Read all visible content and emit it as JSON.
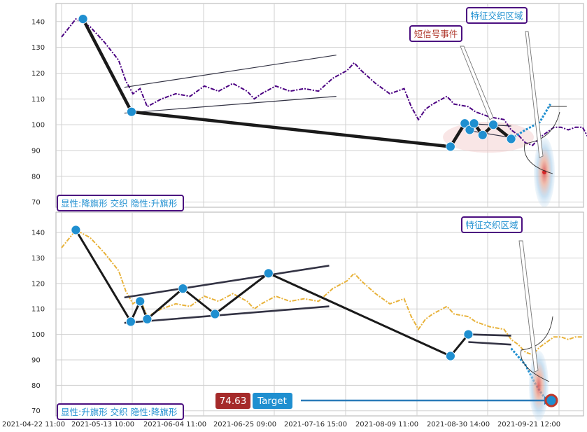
{
  "chart_data": [
    {
      "type": "line",
      "panel": "top",
      "ylim": [
        68,
        147
      ],
      "yticks": [
        70,
        80,
        90,
        100,
        110,
        120,
        130,
        140
      ],
      "grid": true,
      "series": [
        {
          "color": "#4b0082",
          "style": "dash-dot",
          "values": [
            [
              0,
              134
            ],
            [
              2,
              141
            ],
            [
              4,
              138
            ],
            [
              6,
              132
            ],
            [
              8,
              125
            ],
            [
              9,
              117
            ],
            [
              10,
              112
            ],
            [
              11,
              114
            ],
            [
              12,
              107
            ],
            [
              14,
              110
            ],
            [
              16,
              112
            ],
            [
              18,
              111
            ],
            [
              20,
              115
            ],
            [
              22,
              113
            ],
            [
              24,
              116
            ],
            [
              26,
              113
            ],
            [
              27,
              110
            ],
            [
              28,
              112
            ],
            [
              30,
              115
            ],
            [
              32,
              113
            ],
            [
              34,
              114
            ],
            [
              36,
              113
            ],
            [
              38,
              118
            ],
            [
              40,
              121
            ],
            [
              41,
              124
            ],
            [
              42,
              121
            ],
            [
              44,
              116
            ],
            [
              46,
              112
            ],
            [
              48,
              114
            ],
            [
              49,
              107
            ],
            [
              50,
              102
            ],
            [
              51,
              106
            ],
            [
              52,
              108
            ],
            [
              54,
              111
            ],
            [
              55,
              108
            ],
            [
              57,
              107
            ],
            [
              58,
              105
            ],
            [
              60,
              103
            ],
            [
              62,
              102
            ],
            [
              63,
              98
            ],
            [
              64,
              96
            ],
            [
              65,
              93
            ],
            [
              66,
              92
            ],
            [
              67,
              95
            ],
            [
              68,
              97
            ],
            [
              69,
              99
            ],
            [
              70,
              99
            ],
            [
              71,
              98
            ],
            [
              72,
              99
            ],
            [
              73,
              99
            ],
            [
              74,
              94
            ],
            [
              75,
              97
            ],
            [
              76,
              101
            ],
            [
              77,
              106
            ],
            [
              78,
              107
            ],
            [
              79,
              108
            ]
          ]
        }
      ],
      "pattern_points": [
        [
          3,
          141
        ],
        [
          9.8,
          105
        ],
        [
          54.5,
          91.5
        ],
        [
          56.5,
          100.5
        ],
        [
          57.2,
          98
        ],
        [
          57.8,
          100.5
        ],
        [
          59,
          96
        ],
        [
          60.5,
          100
        ],
        [
          63,
          94.5
        ]
      ],
      "pattern_lines": [
        {
          "from": [
            8.8,
            114.5
          ],
          "to": [
            38.5,
            127
          ]
        },
        {
          "from": [
            8.8,
            104.5
          ],
          "to": [
            38.5,
            111
          ]
        },
        {
          "from": [
            56.5,
            100.5
          ],
          "to": [
            63,
            99.5
          ]
        },
        {
          "from": [
            56.5,
            98
          ],
          "to": [
            63,
            95
          ]
        }
      ],
      "forecast_path": [
        [
          63,
          94.5
        ],
        [
          65,
          98
        ],
        [
          67,
          101
        ],
        [
          68.5,
          108
        ]
      ],
      "target": 82,
      "labels": {
        "pattern": "显性:降旗形 交织 隐性:升旗形",
        "zone": "特征交织区域",
        "event": "短信号事件"
      }
    },
    {
      "type": "line",
      "panel": "bottom",
      "ylim": [
        68,
        148
      ],
      "yticks": [
        70,
        80,
        90,
        100,
        110,
        120,
        130,
        140
      ],
      "grid": true,
      "x_tick_labels": [
        "2021-04-22 11:00",
        "2021-05-13 10:00",
        "2021-06-04 11:00",
        "2021-06-25 09:00",
        "2021-07-16 15:00",
        "2021-08-09 11:00",
        "2021-08-30 14:00",
        "2021-09-21 12:00"
      ],
      "series": [
        {
          "color": "#e8b23a",
          "style": "dash-dot",
          "values": [
            [
              0,
              134
            ],
            [
              2,
              141
            ],
            [
              4,
              138
            ],
            [
              6,
              132
            ],
            [
              8,
              125
            ],
            [
              9,
              117
            ],
            [
              10,
              112
            ],
            [
              11,
              114
            ],
            [
              12,
              107
            ],
            [
              14,
              110
            ],
            [
              16,
              112
            ],
            [
              18,
              111
            ],
            [
              20,
              115
            ],
            [
              22,
              113
            ],
            [
              24,
              116
            ],
            [
              26,
              113
            ],
            [
              27,
              110
            ],
            [
              28,
              112
            ],
            [
              30,
              115
            ],
            [
              32,
              113
            ],
            [
              34,
              114
            ],
            [
              36,
              113
            ],
            [
              38,
              118
            ],
            [
              40,
              121
            ],
            [
              41,
              124
            ],
            [
              42,
              121
            ],
            [
              44,
              116
            ],
            [
              46,
              112
            ],
            [
              48,
              114
            ],
            [
              49,
              107
            ],
            [
              50,
              102
            ],
            [
              51,
              106
            ],
            [
              52,
              108
            ],
            [
              54,
              111
            ],
            [
              55,
              108
            ],
            [
              57,
              107
            ],
            [
              58,
              105
            ],
            [
              60,
              103
            ],
            [
              62,
              102
            ],
            [
              63,
              98
            ],
            [
              64,
              96
            ],
            [
              65,
              93
            ],
            [
              66,
              92
            ],
            [
              67,
              95
            ],
            [
              68,
              97
            ],
            [
              69,
              99
            ],
            [
              70,
              99
            ],
            [
              71,
              98
            ],
            [
              72,
              99
            ],
            [
              73,
              99
            ]
          ]
        }
      ],
      "pattern_points": [
        [
          2,
          141
        ],
        [
          9.7,
          105
        ],
        [
          11,
          113
        ],
        [
          12,
          106
        ],
        [
          17,
          118
        ],
        [
          21.5,
          108
        ],
        [
          29,
          124
        ],
        [
          54.5,
          91.5
        ],
        [
          57,
          100
        ]
      ],
      "pattern_lines": [
        {
          "from": [
            8.8,
            114.5
          ],
          "to": [
            37.5,
            127
          ]
        },
        {
          "from": [
            8.8,
            104.5
          ],
          "to": [
            37.5,
            111
          ]
        },
        {
          "from": [
            57,
            97
          ],
          "to": [
            63,
            96
          ]
        },
        {
          "from": [
            57,
            100
          ],
          "to": [
            63,
            99.5
          ]
        }
      ],
      "forecast_path": [
        [
          63,
          94.5
        ],
        [
          65,
          88
        ],
        [
          66.5,
          80
        ],
        [
          67.8,
          74.63
        ]
      ],
      "target": 74.63,
      "tag_value": "74.63",
      "tag_label": "Target",
      "labels": {
        "pattern": "显性:升旗形 交织 隐性:降旗形",
        "zone": "特征交织区域"
      }
    }
  ]
}
